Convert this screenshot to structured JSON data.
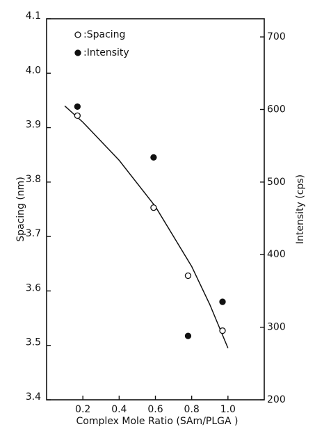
{
  "chart_data": {
    "type": "scatter",
    "x_label": "Complex Mole Ratio (SAm/PLGA )",
    "y_label": "Spacing (nm)",
    "y2_label": "Intensity (cps)",
    "xlim": [
      0,
      1.2
    ],
    "xticks": [
      0.2,
      0.4,
      0.6,
      0.8,
      {
        "value": 1,
        "label": "1.0"
      }
    ],
    "ylim": [
      3.4,
      4.1
    ],
    "yticks": [
      3.4,
      3.5,
      3.6,
      3.7,
      3.8,
      3.9,
      {
        "value": 4,
        "label": "4.0"
      },
      4.1
    ],
    "y2lim": [
      200,
      725
    ],
    "y2ticks": [
      200,
      300,
      400,
      500,
      600,
      700
    ],
    "series": [
      {
        "name": ":Spacing",
        "marker": "open",
        "color": "#111111",
        "x": [
          0.17,
          0.59,
          0.78,
          0.97
        ],
        "values": [
          3.922,
          3.753,
          3.628,
          3.527
        ]
      },
      {
        "name": ":Intensity",
        "marker": "filled",
        "axis": "y2",
        "color": "#111111",
        "x": [
          0.17,
          0.59,
          0.78,
          0.97
        ],
        "values": [
          604,
          534,
          288,
          335
        ]
      }
    ],
    "curve": {
      "color": "#111111",
      "x": [
        0.1,
        0.2,
        0.4,
        0.6,
        0.8,
        0.9,
        1.0
      ],
      "values": [
        3.94,
        3.91,
        3.84,
        3.755,
        3.645,
        3.575,
        3.495
      ]
    }
  }
}
